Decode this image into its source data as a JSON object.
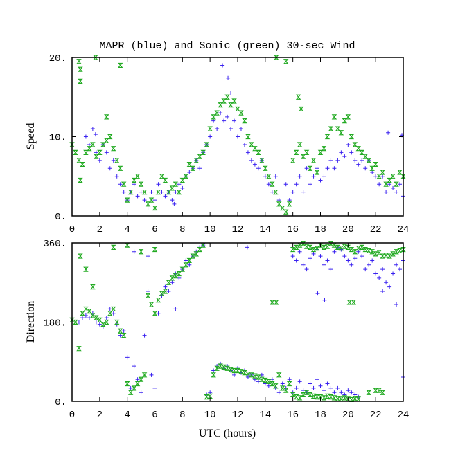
{
  "chart_data": [
    {
      "type": "scatter",
      "title": "MAPR (blue) and Sonic (green) 30-sec Wind",
      "xlabel": "",
      "ylabel": "Speed",
      "xlim": [
        0,
        24
      ],
      "ylim": [
        0,
        20
      ],
      "xticks": [
        "0",
        "2",
        "4",
        "6",
        "8",
        "10",
        "12",
        "14",
        "16",
        "18",
        "20",
        "22",
        "24"
      ],
      "yticks": [
        {
          "v": 20,
          "label": "20."
        },
        {
          "v": 10,
          "label": "10."
        },
        {
          "v": 0,
          "label": "0."
        }
      ],
      "x_start": 0,
      "x_step": 0.25,
      "series": [
        {
          "name": "MAPR",
          "color": "#3a22f0",
          "marker": "plus",
          "segments": [
            {
              "start": 0,
              "values": [
                null,
                null,
                null,
                null,
                10,
                9,
                11,
                8,
                7,
                9,
                8,
                6,
                7,
                5,
                4,
                3,
                2,
                3,
                4,
                2.5,
                3,
                2,
                1,
                3,
                2,
                4,
                3,
                2.5,
                3,
                2,
                3,
                4,
                3.5,
                5,
                5.5,
                6,
                7,
                6,
                8,
                9,
                10,
                12,
                11,
                13,
                12,
                12.5,
                11,
                12,
                10,
                11,
                9,
                8,
                7,
                6.5,
                6,
                7,
                5,
                4,
                3,
                5,
                2,
                null,
                4,
                2,
                3,
                4,
                5,
                3,
                6,
                4,
                5,
                6,
                4.5,
                5,
                6,
                7,
                6,
                7,
                8,
                7.5,
                9,
                8,
                7,
                6.5,
                7,
                6,
                7,
                5.5,
                5,
                4,
                5,
                3,
                4,
                3.5,
                3,
                4,
                2.5
              ]
            }
          ],
          "outliers": [
            [
              10.9,
              19
            ],
            [
              11.3,
              17.4
            ],
            [
              11.5,
              15.5
            ],
            [
              1.7,
              10.3
            ],
            [
              22.9,
              10.5
            ],
            [
              23.9,
              10.2
            ],
            [
              7.4,
              1.5
            ]
          ]
        },
        {
          "name": "Sonic",
          "color": "#22aa22",
          "marker": "hourglass",
          "segments": [
            {
              "start": 0,
              "values": [
                9,
                8,
                7,
                6.5,
                8,
                8.5,
                9,
                7.5,
                8,
                9,
                9.5,
                10,
                8.5,
                7,
                6,
                4,
                2,
                3,
                4.5,
                5,
                4,
                3,
                1.5,
                2,
                1,
                3,
                5,
                4.5,
                3,
                3.5,
                4,
                3,
                4.5,
                5,
                6.5,
                6,
                7,
                7.5,
                8,
                9,
                11,
                12.5,
                13,
                14,
                14.5,
                15,
                14,
                14.5,
                13.5,
                13,
                12,
                10,
                9,
                8.5,
                8,
                7,
                6,
                5,
                4,
                3,
                1.5,
                1,
                0.5,
                1.5,
                7,
                8,
                9,
                7.5,
                8,
                6,
                7,
                5.5,
                8,
                8.5,
                10,
                11,
                12.5,
                11,
                10.5,
                12,
                12.5,
                10,
                9,
                8.5,
                8,
                7.5,
                7,
                6,
                6.5,
                5,
                5.5,
                4,
                4.5,
                5,
                4,
                5.5,
                5
              ]
            }
          ],
          "outliers": [
            [
              0.5,
              19.5
            ],
            [
              0.6,
              18.5
            ],
            [
              0.6,
              17
            ],
            [
              1.7,
              20
            ],
            [
              3.5,
              19
            ],
            [
              14.8,
              20
            ],
            [
              16.4,
              15
            ],
            [
              16.6,
              13.5
            ],
            [
              15.5,
              19.5
            ],
            [
              2.5,
              12.5
            ],
            [
              0.6,
              4.5
            ]
          ]
        }
      ]
    },
    {
      "type": "scatter",
      "xlabel": "UTC (hours)",
      "ylabel": "Direction",
      "xlim": [
        0,
        24
      ],
      "ylim": [
        0,
        360
      ],
      "xticks": [
        "0",
        "2",
        "4",
        "6",
        "8",
        "10",
        "12",
        "14",
        "16",
        "18",
        "20",
        "22",
        "24"
      ],
      "yticks": [
        {
          "v": 360,
          "label": "360."
        },
        {
          "v": 180,
          "label": "180."
        },
        {
          "v": 0,
          "label": "0."
        }
      ],
      "x_start": 0,
      "x_step": 0.25,
      "series": [
        {
          "name": "MAPR",
          "color": "#3a22f0",
          "marker": "plus",
          "segments": [
            {
              "start": 0,
              "values": [
                null,
                null,
                180,
                190,
                195,
                190,
                200,
                180,
                175,
                170,
                190,
                210,
                200,
                175,
                150,
                160,
                100,
                30,
                80,
                50,
                20,
                150,
                250,
                60,
                30,
                200,
                240,
                260,
                250,
                270,
                290,
                280,
                300,
                320,
                310,
                330,
                340,
                350,
                355,
                15,
                20,
                70,
                80,
                85,
                75,
                80,
                70,
                60,
                75,
                65,
                70,
                55,
                60,
                50,
                45,
                60,
                40,
                35,
                50,
                30,
                20,
                40,
                30,
                50,
                20,
                30,
                45,
                25,
                20,
                40,
                30,
                50,
                35,
                25,
                40,
                30,
                20,
                30,
                20,
                15,
                25,
                20,
                15,
                10,
                null,
                null,
                null,
                null,
                null,
                null,
                null,
                null,
                null,
                null,
                null,
                null,
                55
              ]
            },
            {
              "start": 16,
              "values": [
                330,
                320,
                340,
                310,
                300,
                325,
                335,
                345,
                330,
                310,
                320,
                300,
                340,
                350,
                345,
                330,
                320,
                310,
                325,
                340,
                330,
                300,
                310,
                320,
                290,
                280,
                300,
                270,
                260,
                290,
                310,
                300,
                320
              ]
            }
          ],
          "outliers": [
            [
              4.5,
              340
            ],
            [
              5.5,
              330
            ],
            [
              7.5,
              210
            ],
            [
              12.7,
              350
            ],
            [
              17.8,
              245
            ],
            [
              18.3,
              230
            ],
            [
              22.5,
              250
            ],
            [
              23.5,
              220
            ]
          ]
        },
        {
          "name": "Sonic",
          "color": "#22aa22",
          "marker": "hourglass",
          "segments": [
            {
              "start": 0,
              "values": [
                185,
                180,
                120,
                200,
                210,
                205,
                195,
                190,
                185,
                175,
                180,
                200,
                210,
                180,
                160,
                150,
                40,
                20,
                30,
                40,
                50,
                60,
                240,
                220,
                200,
                230,
                245,
                250,
                270,
                280,
                285,
                290,
                300,
                310,
                320,
                330,
                335,
                345,
                355,
                10,
                12,
                60,
                75,
                80,
                78,
                75,
                72,
                70,
                70,
                68,
                65,
                62,
                60,
                58,
                55,
                50,
                48,
                45,
                40,
                35,
                60,
                30,
                25,
                40,
                15,
                10,
                8,
                15,
                20,
                15,
                12,
                10,
                10,
                8,
                12,
                10,
                8,
                6,
                5,
                8,
                5,
                4,
                6,
                5,
                null,
                null,
                20,
                null,
                25,
                25,
                20,
                null,
                null,
                null,
                null,
                null,
                null
              ]
            },
            {
              "start": 16,
              "values": [
                345,
                350,
                355,
                358,
                352,
                350,
                345,
                348,
                355,
                350,
                352,
                358,
                355,
                350,
                348,
                352,
                350,
                345,
                340,
                348,
                350,
                345,
                342,
                340,
                335,
                338,
                330,
                332,
                330,
                335,
                340,
                342,
                345
              ]
            }
          ],
          "outliers": [
            [
              0.6,
              330
            ],
            [
              1,
              300
            ],
            [
              1.5,
              260
            ],
            [
              3,
              350
            ],
            [
              4,
              355
            ],
            [
              5,
              340
            ],
            [
              6,
              345
            ],
            [
              14.5,
              225
            ],
            [
              14.8,
              225
            ],
            [
              20.1,
              225
            ],
            [
              20.4,
              225
            ]
          ]
        }
      ]
    }
  ]
}
